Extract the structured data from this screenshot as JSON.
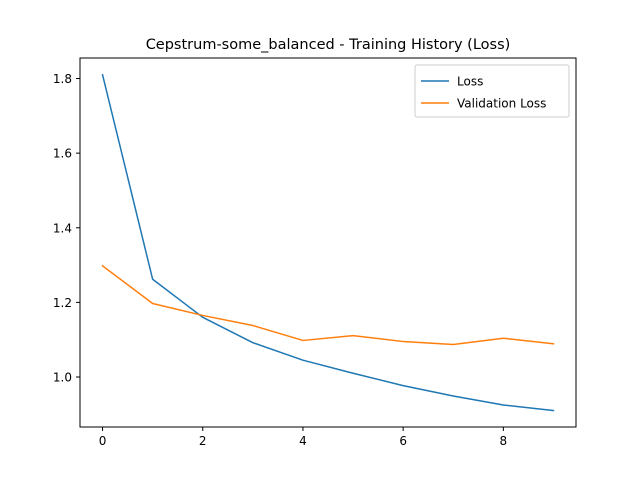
{
  "chart_data": {
    "type": "line",
    "title": "Cepstrum-some_balanced - Training History (Loss)",
    "xlabel": "",
    "ylabel": "",
    "x": [
      0,
      1,
      2,
      3,
      4,
      5,
      6,
      7,
      8,
      9
    ],
    "series": [
      {
        "name": "Loss",
        "color": "#1f77b4",
        "values": [
          1.81,
          1.262,
          1.16,
          1.092,
          1.045,
          1.01,
          0.977,
          0.949,
          0.925,
          0.91
        ]
      },
      {
        "name": "Validation Loss",
        "color": "#ff7f0e",
        "values": [
          1.298,
          1.197,
          1.165,
          1.138,
          1.098,
          1.111,
          1.095,
          1.087,
          1.104,
          1.089
        ]
      }
    ],
    "xlim": [
      -0.45,
      9.45
    ],
    "ylim": [
      0.866,
      1.855
    ],
    "xticks": [
      0,
      2,
      4,
      6,
      8
    ],
    "xtick_labels": [
      "0",
      "2",
      "4",
      "6",
      "8"
    ],
    "yticks": [
      1.0,
      1.2,
      1.4,
      1.6,
      1.8
    ],
    "ytick_labels": [
      "1.0",
      "1.2",
      "1.4",
      "1.6",
      "1.8"
    ],
    "grid": false,
    "legend_position": "upper right"
  }
}
